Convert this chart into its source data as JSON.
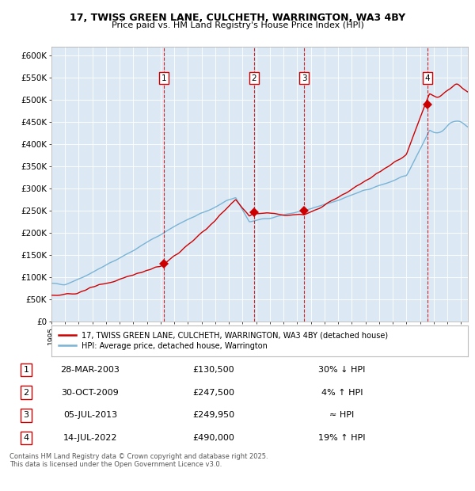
{
  "title": "17, TWISS GREEN LANE, CULCHETH, WARRINGTON, WA3 4BY",
  "subtitle": "Price paid vs. HM Land Registry's House Price Index (HPI)",
  "background_color": "#dce9f5",
  "hpi_color": "#7ab3d4",
  "price_color": "#cc0000",
  "ylim": [
    0,
    620000
  ],
  "yticks": [
    0,
    50000,
    100000,
    150000,
    200000,
    250000,
    300000,
    350000,
    400000,
    450000,
    500000,
    550000,
    600000
  ],
  "sales": [
    {
      "num": 1,
      "date": "28-MAR-2003",
      "year": 2003.24,
      "price": 130500,
      "note": "30% ↓ HPI"
    },
    {
      "num": 2,
      "date": "30-OCT-2009",
      "year": 2009.83,
      "price": 247500,
      "note": "4% ↑ HPI"
    },
    {
      "num": 3,
      "date": "05-JUL-2013",
      "year": 2013.51,
      "price": 249950,
      "note": "≈ HPI"
    },
    {
      "num": 4,
      "date": "14-JUL-2022",
      "year": 2022.54,
      "price": 490000,
      "note": "19% ↑ HPI"
    }
  ],
  "legend_label_price": "17, TWISS GREEN LANE, CULCHETH, WARRINGTON, WA3 4BY (detached house)",
  "legend_label_hpi": "HPI: Average price, detached house, Warrington",
  "footer": "Contains HM Land Registry data © Crown copyright and database right 2025.\nThis data is licensed under the Open Government Licence v3.0.",
  "xmin": 1995,
  "xmax": 2025.5
}
